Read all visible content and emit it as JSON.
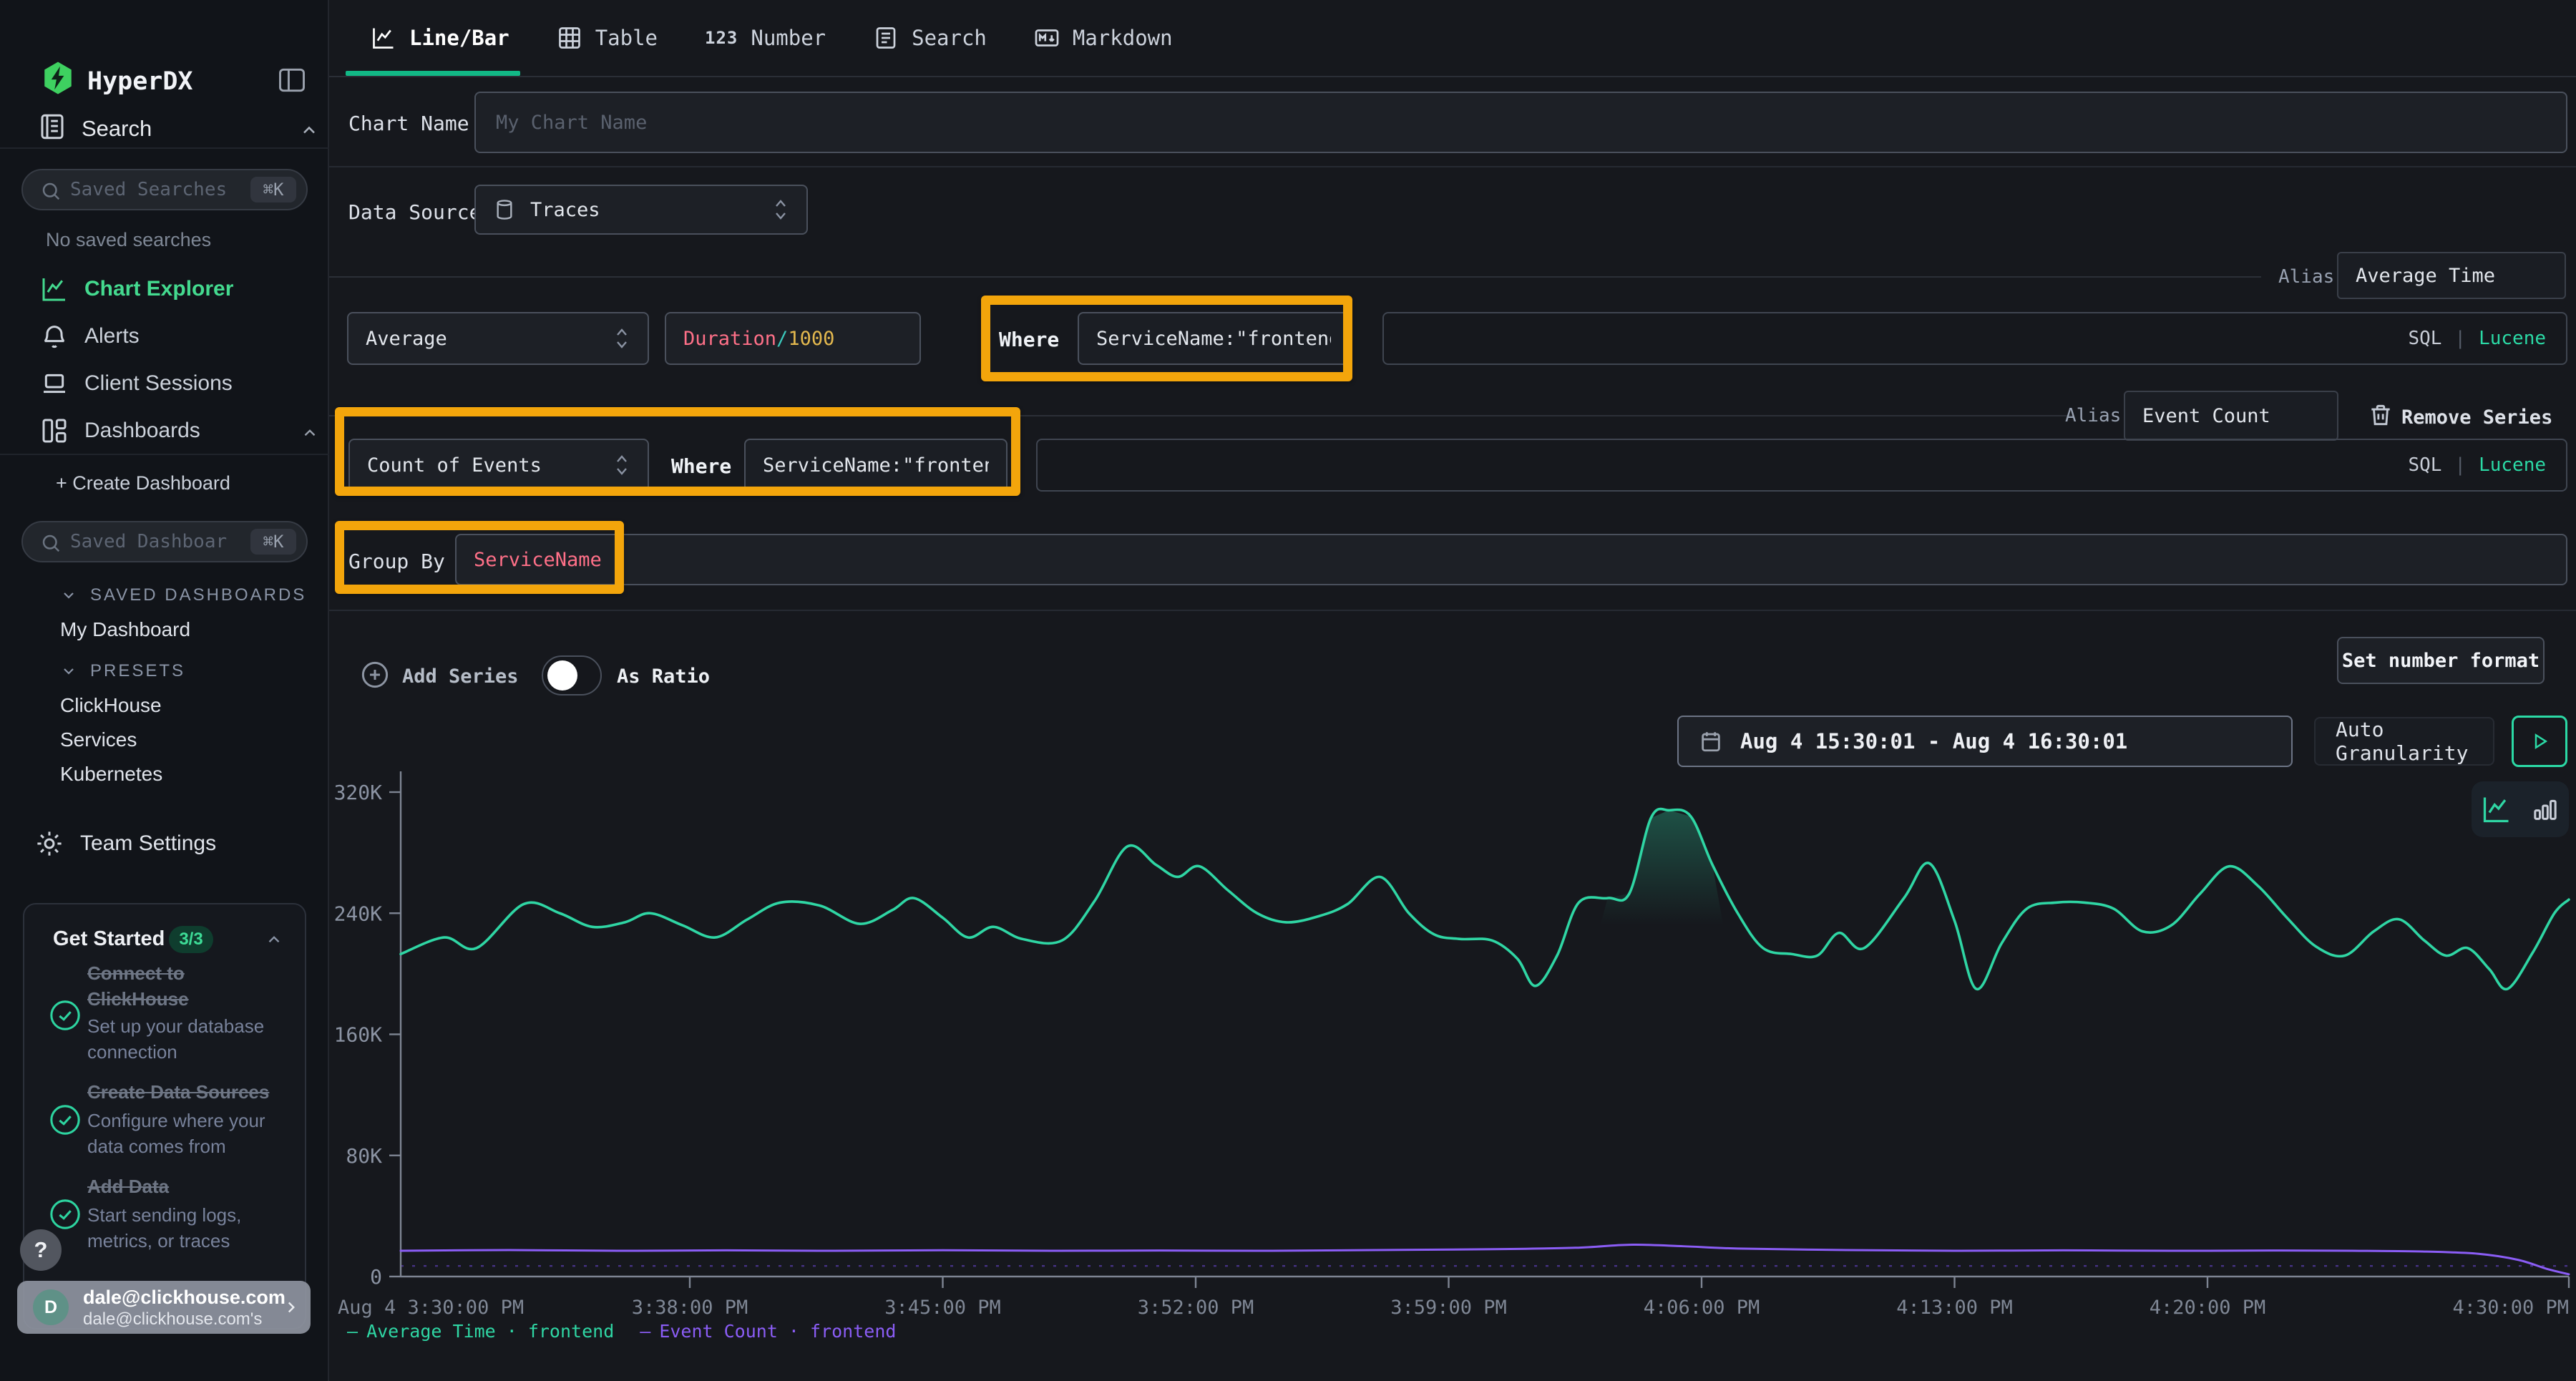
{
  "sidebar": {
    "brand": "HyperDX",
    "search_section": "Search",
    "saved_searches_placeholder": "Saved Searches",
    "shortcut": "⌘K",
    "no_saved": "No saved searches",
    "nav": {
      "chart_explorer": "Chart Explorer",
      "alerts": "Alerts",
      "client_sessions": "Client Sessions",
      "dashboards": "Dashboards"
    },
    "create_dashboard": "+ Create Dashboard",
    "saved_dashboards_placeholder": "Saved Dashboards",
    "sections": {
      "saved_dashboards": "SAVED DASHBOARDS",
      "presets": "PRESETS"
    },
    "my_dashboard": "My Dashboard",
    "presets": [
      "ClickHouse",
      "Services",
      "Kubernetes"
    ],
    "team_settings": "Team Settings",
    "get_started": {
      "title": "Get Started",
      "badge": "3/3",
      "items": [
        {
          "title": "Connect to ClickHouse",
          "desc": "Set up your database connection"
        },
        {
          "title": "Create Data Sources",
          "desc": "Configure where your data comes from"
        },
        {
          "title": "Add Data",
          "desc": "Start sending logs, metrics, or traces"
        }
      ]
    },
    "help": "?",
    "user": {
      "avatar": "D",
      "email": "dale@clickhouse.com",
      "sub": "dale@clickhouse.com's"
    }
  },
  "tabs": [
    {
      "label": "Line/Bar"
    },
    {
      "label": "Table"
    },
    {
      "label": "Number"
    },
    {
      "label": "Search"
    },
    {
      "label": "Markdown"
    }
  ],
  "tabs_icons": {
    "number": "123"
  },
  "form": {
    "chart_name_label": "Chart Name",
    "chart_name_placeholder": "My Chart Name",
    "data_source_label": "Data Source",
    "data_source_value": "Traces",
    "alias_label": "Alias",
    "where_label": "Where",
    "query_langs": {
      "sql": "SQL",
      "divider": "|",
      "lucene": "Lucene"
    },
    "series": [
      {
        "aggregation": "Average",
        "field": "Duration",
        "op": "/",
        "denom": "1000",
        "where_value": "ServiceName:\"frontend\"",
        "alias": "Average Time"
      },
      {
        "aggregation": "Count of Events",
        "where_value": "ServiceName:\"frontend\"",
        "alias": "Event Count"
      }
    ],
    "remove_series": "Remove Series",
    "group_by_label": "Group By",
    "group_by_value": "ServiceName",
    "add_series": "Add Series",
    "as_ratio": "As Ratio",
    "set_number_format": "Set number format"
  },
  "controls": {
    "time_range": "Aug 4 15:30:01 - Aug 4 16:30:01",
    "granularity": "Auto Granularity"
  },
  "legend": {
    "marker": "—"
  },
  "chart_data": {
    "type": "line",
    "x_axis": {
      "unit": "minutes from Aug 4 3:30:00 PM",
      "range": [
        0,
        60
      ],
      "ticks": [
        {
          "label": "Aug 4 3:30:00 PM",
          "min": 0
        },
        {
          "label": "3:38:00 PM",
          "min": 8
        },
        {
          "label": "3:45:00 PM",
          "min": 15
        },
        {
          "label": "3:52:00 PM",
          "min": 22
        },
        {
          "label": "3:59:00 PM",
          "min": 29
        },
        {
          "label": "4:06:00 PM",
          "min": 36
        },
        {
          "label": "4:13:00 PM",
          "min": 43
        },
        {
          "label": "4:20:00 PM",
          "min": 50
        },
        {
          "label": "4:30:00 PM",
          "min": 60
        }
      ]
    },
    "y_axis": {
      "range": [
        0,
        320000
      ],
      "ticks": [
        {
          "label": "0",
          "value": 0
        },
        {
          "label": "80K",
          "value": 80000
        },
        {
          "label": "160K",
          "value": 160000
        },
        {
          "label": "240K",
          "value": 240000
        },
        {
          "label": "320K",
          "value": 320000
        }
      ]
    },
    "series": [
      {
        "name": "Average Time · frontend",
        "color": "#2fd6a4",
        "points": [
          [
            0,
            213000
          ],
          [
            1.2,
            224000
          ],
          [
            2.1,
            217000
          ],
          [
            3.4,
            246000
          ],
          [
            4.4,
            240000
          ],
          [
            5.3,
            231000
          ],
          [
            6.2,
            234000
          ],
          [
            6.9,
            240000
          ],
          [
            7.8,
            232000
          ],
          [
            8.7,
            224000
          ],
          [
            9.6,
            236000
          ],
          [
            10.5,
            247000
          ],
          [
            11.6,
            245000
          ],
          [
            12.7,
            233000
          ],
          [
            13.6,
            242000
          ],
          [
            14.2,
            250000
          ],
          [
            15,
            237000
          ],
          [
            15.7,
            224000
          ],
          [
            16.4,
            231000
          ],
          [
            17.2,
            223000
          ],
          [
            18.3,
            222000
          ],
          [
            19.2,
            248000
          ],
          [
            20.1,
            284000
          ],
          [
            20.9,
            272000
          ],
          [
            21.5,
            264000
          ],
          [
            22.1,
            271000
          ],
          [
            22.9,
            255000
          ],
          [
            23.7,
            240000
          ],
          [
            24.5,
            234000
          ],
          [
            25.4,
            238000
          ],
          [
            26.2,
            246000
          ],
          [
            27.1,
            264000
          ],
          [
            27.9,
            240000
          ],
          [
            28.6,
            226000
          ],
          [
            29.3,
            223000
          ],
          [
            30.2,
            222000
          ],
          [
            30.9,
            210000
          ],
          [
            31.4,
            192000
          ],
          [
            32,
            212000
          ],
          [
            32.6,
            247000
          ],
          [
            33.4,
            250000
          ],
          [
            34,
            253000
          ],
          [
            34.6,
            303000
          ],
          [
            35.1,
            308000
          ],
          [
            35.7,
            304000
          ],
          [
            36.3,
            272000
          ],
          [
            37,
            240000
          ],
          [
            37.7,
            217000
          ],
          [
            38.5,
            213000
          ],
          [
            39.2,
            212000
          ],
          [
            39.8,
            227000
          ],
          [
            40.5,
            217000
          ],
          [
            41.6,
            250000
          ],
          [
            42.3,
            273000
          ],
          [
            43,
            235000
          ],
          [
            43.6,
            190000
          ],
          [
            44.3,
            220000
          ],
          [
            45,
            243000
          ],
          [
            45.8,
            247000
          ],
          [
            46.6,
            247000
          ],
          [
            47.4,
            243000
          ],
          [
            48.2,
            228000
          ],
          [
            49,
            232000
          ],
          [
            49.8,
            253000
          ],
          [
            50.6,
            271000
          ],
          [
            51.4,
            258000
          ],
          [
            52.2,
            237000
          ],
          [
            53,
            218000
          ],
          [
            53.8,
            212000
          ],
          [
            54.6,
            228000
          ],
          [
            55.3,
            236000
          ],
          [
            56,
            222000
          ],
          [
            56.6,
            212000
          ],
          [
            57.2,
            217000
          ],
          [
            57.8,
            203000
          ],
          [
            58.3,
            190000
          ],
          [
            59,
            214000
          ],
          [
            59.6,
            240000
          ],
          [
            60,
            249000
          ]
        ]
      },
      {
        "name": "Event Count · frontend",
        "color": "#8b5df6",
        "points": [
          [
            0,
            17000
          ],
          [
            3,
            17500
          ],
          [
            6,
            17000
          ],
          [
            9,
            17300
          ],
          [
            12,
            17000
          ],
          [
            15,
            17400
          ],
          [
            18,
            17000
          ],
          [
            21,
            17200
          ],
          [
            24,
            17000
          ],
          [
            27,
            17500
          ],
          [
            30,
            18000
          ],
          [
            32.5,
            19000
          ],
          [
            34,
            21000
          ],
          [
            35.5,
            20000
          ],
          [
            37,
            18500
          ],
          [
            40,
            17500
          ],
          [
            43,
            17000
          ],
          [
            46,
            17300
          ],
          [
            49,
            17000
          ],
          [
            52,
            17200
          ],
          [
            54,
            17000
          ],
          [
            56,
            16500
          ],
          [
            57.5,
            15000
          ],
          [
            58.6,
            11000
          ],
          [
            59.4,
            5000
          ],
          [
            60,
            1500
          ]
        ]
      }
    ],
    "dashed_baseline": {
      "color": "#6d48d8",
      "value": 7000
    }
  }
}
